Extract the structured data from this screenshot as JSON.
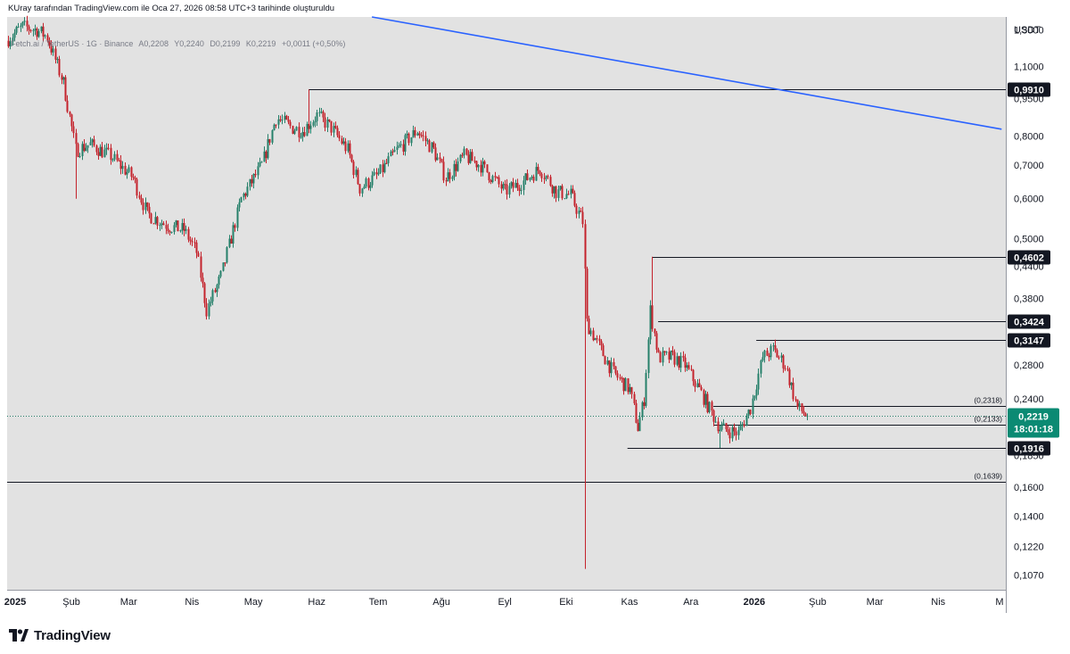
{
  "header": {
    "caption": "KUray tarafından TradingView.com ile Oca 27, 2026 08:58 UTC+3 tarihinde oluşturuldu"
  },
  "legend": {
    "symbol": "Fetch.ai / TetherUS · 1G · Binance",
    "open": "A0,2208",
    "high": "Y0,2240",
    "low": "D0,2199",
    "close": "K0,2219",
    "change": "+0,0011 (+0,50%)"
  },
  "branding": {
    "name": "TradingView"
  },
  "colors": {
    "background": "#e2e2e2",
    "up": "#26806a",
    "down": "#c4232c",
    "trendline": "#2a62ff",
    "level": "#131722",
    "price_label": "#0b8a73"
  },
  "chart_data": {
    "type": "candlestick",
    "currency": "USDT",
    "price_scale": "log",
    "ylim": [
      0.1,
      1.38
    ],
    "y_ticks": [
      "1,3000",
      "1,1000",
      "0,9500",
      "0,8000",
      "0,7000",
      "0,6000",
      "0,5000",
      "0,4400",
      "0,3800",
      "0,2800",
      "0,2400",
      "0,1850",
      "0,1600",
      "0,1400",
      "0,1220",
      "0,1070"
    ],
    "x_ticks": [
      "2025",
      "Şub",
      "Mar",
      "Nis",
      "May",
      "Haz",
      "Tem",
      "Ağu",
      "Eyl",
      "Eki",
      "Kas",
      "Ara",
      "2026",
      "Şub",
      "Mar",
      "Nis",
      "M"
    ],
    "x_tick_dates": [
      "2025-01-01",
      "2025-02-01",
      "2025-03-01",
      "2025-04-01",
      "2025-05-01",
      "2025-06-01",
      "2025-07-01",
      "2025-08-01",
      "2025-09-01",
      "2025-10-01",
      "2025-11-01",
      "2025-12-01",
      "2026-01-01",
      "2026-02-01",
      "2026-03-01",
      "2026-04-01",
      "2026-05-01"
    ],
    "last_price": "0,2219",
    "countdown": "18:01:18",
    "anchors": [
      {
        "date": "2025-01-01",
        "price": 1.25
      },
      {
        "date": "2025-01-08",
        "price": 1.32
      },
      {
        "date": "2025-01-15",
        "price": 1.3
      },
      {
        "date": "2025-01-20",
        "price": 1.26
      },
      {
        "date": "2025-01-28",
        "price": 1.02
      },
      {
        "date": "2025-02-03",
        "price": 0.75
      },
      {
        "date": "2025-02-10",
        "price": 0.77
      },
      {
        "date": "2025-02-20",
        "price": 0.73
      },
      {
        "date": "2025-03-03",
        "price": 0.66
      },
      {
        "date": "2025-03-10",
        "price": 0.56
      },
      {
        "date": "2025-03-20",
        "price": 0.53
      },
      {
        "date": "2025-03-28",
        "price": 0.52
      },
      {
        "date": "2025-04-03",
        "price": 0.47
      },
      {
        "date": "2025-04-08",
        "price": 0.36
      },
      {
        "date": "2025-04-15",
        "price": 0.42
      },
      {
        "date": "2025-04-25",
        "price": 0.6
      },
      {
        "date": "2025-05-05",
        "price": 0.7
      },
      {
        "date": "2025-05-12",
        "price": 0.87
      },
      {
        "date": "2025-05-20",
        "price": 0.83
      },
      {
        "date": "2025-05-25",
        "price": 0.82
      },
      {
        "date": "2025-06-01",
        "price": 0.88
      },
      {
        "date": "2025-06-08",
        "price": 0.83
      },
      {
        "date": "2025-06-16",
        "price": 0.75
      },
      {
        "date": "2025-06-22",
        "price": 0.63
      },
      {
        "date": "2025-07-01",
        "price": 0.67
      },
      {
        "date": "2025-07-10",
        "price": 0.75
      },
      {
        "date": "2025-07-20",
        "price": 0.82
      },
      {
        "date": "2025-07-28",
        "price": 0.75
      },
      {
        "date": "2025-08-03",
        "price": 0.66
      },
      {
        "date": "2025-08-12",
        "price": 0.73
      },
      {
        "date": "2025-08-20",
        "price": 0.7
      },
      {
        "date": "2025-09-01",
        "price": 0.62
      },
      {
        "date": "2025-09-10",
        "price": 0.65
      },
      {
        "date": "2025-09-18",
        "price": 0.69
      },
      {
        "date": "2025-09-26",
        "price": 0.62
      },
      {
        "date": "2025-10-03",
        "price": 0.61
      },
      {
        "date": "2025-10-09",
        "price": 0.54
      },
      {
        "date": "2025-10-11",
        "price": 0.34
      },
      {
        "date": "2025-10-16",
        "price": 0.31
      },
      {
        "date": "2025-10-24",
        "price": 0.27
      },
      {
        "date": "2025-11-01",
        "price": 0.25
      },
      {
        "date": "2025-11-05",
        "price": 0.21
      },
      {
        "date": "2025-11-08",
        "price": 0.24
      },
      {
        "date": "2025-11-11",
        "price": 0.36
      },
      {
        "date": "2025-11-15",
        "price": 0.29
      },
      {
        "date": "2025-11-22",
        "price": 0.29
      },
      {
        "date": "2025-11-28",
        "price": 0.28
      },
      {
        "date": "2025-12-05",
        "price": 0.25
      },
      {
        "date": "2025-12-15",
        "price": 0.21
      },
      {
        "date": "2025-12-24",
        "price": 0.205
      },
      {
        "date": "2025-12-30",
        "price": 0.23
      },
      {
        "date": "2026-01-05",
        "price": 0.29
      },
      {
        "date": "2026-01-10",
        "price": 0.3
      },
      {
        "date": "2026-01-16",
        "price": 0.28
      },
      {
        "date": "2026-01-22",
        "price": 0.23
      },
      {
        "date": "2026-01-27",
        "price": 0.2219
      }
    ],
    "wicks": [
      {
        "date": "2025-02-03",
        "low": 0.6
      },
      {
        "date": "2025-04-08",
        "low": 0.345
      },
      {
        "date": "2025-05-28",
        "high": 0.99
      },
      {
        "date": "2025-10-10",
        "low": 0.11
      },
      {
        "date": "2025-11-12",
        "high": 0.46
      },
      {
        "date": "2025-12-15",
        "low": 0.1916
      },
      {
        "date": "2026-01-11",
        "high": 0.3147
      }
    ],
    "levels": [
      {
        "price": 0.991,
        "label": "0,9910",
        "start": "2025-05-28",
        "style": "box"
      },
      {
        "price": 0.4602,
        "label": "0,4602",
        "start": "2025-11-12",
        "style": "box"
      },
      {
        "price": 0.3424,
        "label": "0,3424",
        "start": "2025-11-15",
        "style": "box"
      },
      {
        "price": 0.3147,
        "label": "0,3147",
        "start": "2026-01-02",
        "style": "box"
      },
      {
        "price": 0.2318,
        "label": "(0,2318)",
        "start": "2025-12-12",
        "style": "text"
      },
      {
        "price": 0.2133,
        "label": "(0,2133)",
        "start": "2025-12-12",
        "style": "text"
      },
      {
        "price": 0.1916,
        "label": "0,1916",
        "start": "2025-10-31",
        "style": "box"
      },
      {
        "price": 0.1639,
        "label": "(0,1639)",
        "start": "2024-12-31",
        "style": "text"
      }
    ],
    "trendline": {
      "start": {
        "date": "2025-06-28",
        "price": 1.38
      },
      "end": {
        "date": "2026-05-02",
        "price": 0.825
      }
    }
  }
}
